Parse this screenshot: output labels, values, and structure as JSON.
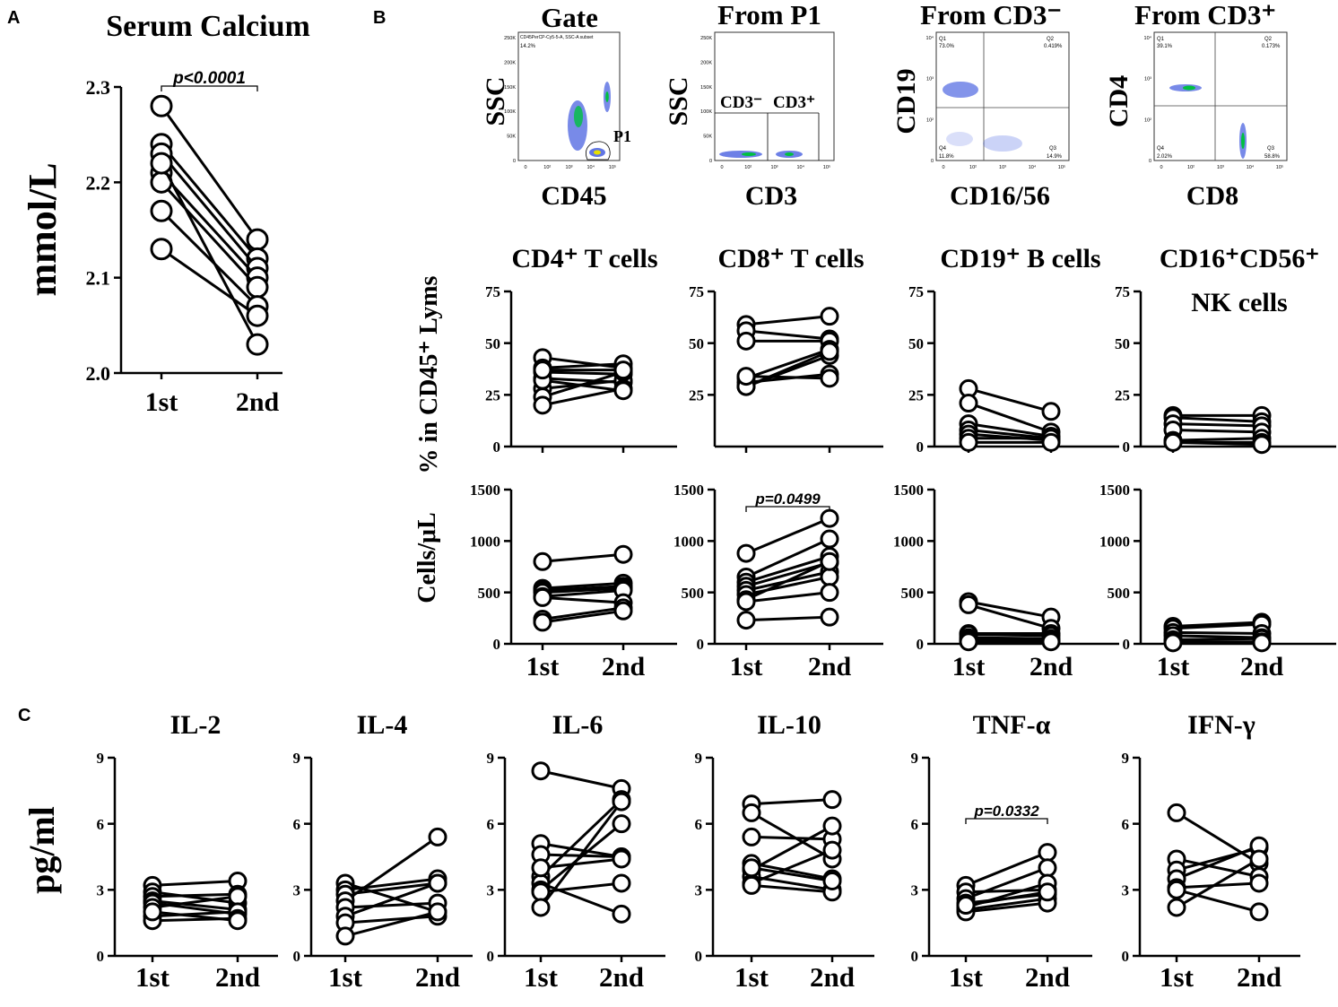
{
  "panels": {
    "A": {
      "letter": "A"
    },
    "B": {
      "letter": "B"
    },
    "C": {
      "letter": "C"
    }
  },
  "flow": {
    "gate": {
      "title": "Gate",
      "ylabel": "SSC",
      "xlabel": "CD45",
      "header": "CD45PerCP-Cy5-5-A, SSC-A subset",
      "pct": "14.2%",
      "gate_label": "P1"
    },
    "p1": {
      "title": "From P1",
      "ylabel": "SSC",
      "xlabel": "CD3",
      "gate_neg": "CD3⁻",
      "gate_pos": "CD3⁺"
    },
    "cd3neg": {
      "title": "From CD3⁻",
      "ylabel": "CD19",
      "xlabel": "CD16/56",
      "q1": "Q1",
      "q1v": "73.0%",
      "q2": "Q2",
      "q2v": "0.419%",
      "q3": "Q3",
      "q3v": "14.9%",
      "q4": "Q4",
      "q4v": "11.8%"
    },
    "cd3pos": {
      "title": "From CD3⁺",
      "ylabel": "CD4",
      "xlabel": "CD8",
      "q1": "Q1",
      "q1v": "39.1%",
      "q2": "Q2",
      "q2v": "0.173%",
      "q3": "Q3",
      "q3v": "58.8%",
      "q4": "Q4",
      "q4v": "2.02%"
    },
    "ssc_ticks": [
      "250K",
      "200K",
      "150K",
      "100K",
      "50K",
      "0"
    ],
    "log_ticks": [
      "10⁴",
      "10³",
      "10²",
      "0"
    ],
    "x_ticks": [
      "0",
      "10²",
      "10³",
      "10⁴",
      "10⁵"
    ]
  },
  "row_labels": {
    "pct": "% in CD45⁺ Lyms",
    "count": "Cells/μL",
    "cytokine": "pg/ml"
  },
  "chart_data": [
    {
      "id": "calcium",
      "type": "line",
      "title": "Serum Calcium",
      "ylabel": "mmol/L",
      "categories": [
        "1st",
        "2nd"
      ],
      "ylim": [
        2.0,
        2.3
      ],
      "yticks": [
        "2.0",
        "2.1",
        "2.2",
        "2.3"
      ],
      "pvalue": "p<0.0001",
      "series": [
        [
          2.28,
          2.14
        ],
        [
          2.24,
          2.12
        ],
        [
          2.23,
          2.11
        ],
        [
          2.21,
          2.1
        ],
        [
          2.2,
          2.09
        ],
        [
          2.17,
          2.07
        ],
        [
          2.13,
          2.06
        ],
        [
          2.22,
          2.03
        ]
      ]
    },
    {
      "id": "cd4pct",
      "type": "line",
      "title": "CD4⁺ T cells",
      "categories": [
        "1st",
        "2nd"
      ],
      "ylim": [
        0,
        75
      ],
      "yticks": [
        "0",
        "25",
        "50",
        "75"
      ],
      "series": [
        [
          43,
          38
        ],
        [
          38,
          40
        ],
        [
          36,
          35
        ],
        [
          33,
          31
        ],
        [
          28,
          32
        ],
        [
          24,
          36
        ],
        [
          20,
          28
        ],
        [
          32,
          27
        ],
        [
          37,
          37
        ]
      ]
    },
    {
      "id": "cd8pct",
      "type": "line",
      "title": "CD8⁺ T cells",
      "categories": [
        "1st",
        "2nd"
      ],
      "ylim": [
        0,
        75
      ],
      "yticks": [
        "25",
        "50",
        "75"
      ],
      "series": [
        [
          59,
          63
        ],
        [
          56,
          52
        ],
        [
          51,
          51
        ],
        [
          33,
          47
        ],
        [
          31,
          35
        ],
        [
          29,
          44
        ],
        [
          29,
          46
        ],
        [
          34,
          33
        ]
      ]
    },
    {
      "id": "cd19pct",
      "type": "line",
      "title": "CD19⁺ B cells",
      "categories": [
        "1st",
        "2nd"
      ],
      "ylim": [
        0,
        75
      ],
      "yticks": [
        "0",
        "25",
        "50",
        "75"
      ],
      "series": [
        [
          28,
          17
        ],
        [
          21,
          7
        ],
        [
          11,
          5
        ],
        [
          8,
          4
        ],
        [
          6,
          3
        ],
        [
          4,
          4
        ],
        [
          2,
          2
        ]
      ]
    },
    {
      "id": "nkpct",
      "type": "line",
      "title": "CD16⁺CD56⁺",
      "subtitle": "NK cells",
      "categories": [
        "1st",
        "2nd"
      ],
      "ylim": [
        0,
        75
      ],
      "yticks": [
        "0",
        "25",
        "50",
        "75"
      ],
      "series": [
        [
          15,
          15
        ],
        [
          14,
          12
        ],
        [
          11,
          10
        ],
        [
          8,
          7
        ],
        [
          3,
          4
        ],
        [
          2,
          2
        ],
        [
          2,
          1
        ]
      ]
    },
    {
      "id": "cd4cnt",
      "type": "line",
      "categories": [
        "1st",
        "2nd"
      ],
      "ylim": [
        0,
        1500
      ],
      "yticks": [
        "0",
        "500",
        "1000",
        "1500"
      ],
      "series": [
        [
          800,
          870
        ],
        [
          540,
          590
        ],
        [
          520,
          560
        ],
        [
          500,
          540
        ],
        [
          460,
          520
        ],
        [
          450,
          400
        ],
        [
          240,
          350
        ],
        [
          210,
          320
        ]
      ]
    },
    {
      "id": "cd8cnt",
      "type": "line",
      "categories": [
        "1st",
        "2nd"
      ],
      "ylim": [
        0,
        1500
      ],
      "yticks": [
        "0",
        "500",
        "1000",
        "1500"
      ],
      "pvalue": "p=0.0499",
      "series": [
        [
          880,
          1220
        ],
        [
          650,
          1020
        ],
        [
          600,
          850
        ],
        [
          560,
          790
        ],
        [
          520,
          700
        ],
        [
          480,
          650
        ],
        [
          430,
          800
        ],
        [
          410,
          500
        ],
        [
          230,
          260
        ]
      ]
    },
    {
      "id": "cd19cnt",
      "type": "line",
      "categories": [
        "1st",
        "2nd"
      ],
      "ylim": [
        0,
        1500
      ],
      "yticks": [
        "0",
        "500",
        "1000",
        "1500"
      ],
      "series": [
        [
          410,
          260
        ],
        [
          380,
          150
        ],
        [
          100,
          100
        ],
        [
          90,
          80
        ],
        [
          60,
          50
        ],
        [
          40,
          30
        ],
        [
          20,
          20
        ]
      ]
    },
    {
      "id": "nkcnt",
      "type": "line",
      "categories": [
        "1st",
        "2nd"
      ],
      "ylim": [
        0,
        1500
      ],
      "yticks": [
        "0",
        "500",
        "1000",
        "1500"
      ],
      "series": [
        [
          170,
          210
        ],
        [
          150,
          190
        ],
        [
          110,
          100
        ],
        [
          80,
          60
        ],
        [
          40,
          50
        ],
        [
          20,
          20
        ],
        [
          10,
          10
        ]
      ]
    },
    {
      "id": "il2",
      "type": "line",
      "title": "IL-2",
      "categories": [
        "1st",
        "2nd"
      ],
      "ylim": [
        0,
        9
      ],
      "yticks": [
        "0",
        "3",
        "6",
        "9"
      ],
      "series": [
        [
          3.2,
          3.4
        ],
        [
          2.9,
          2.4
        ],
        [
          2.7,
          2.8
        ],
        [
          2.5,
          2.1
        ],
        [
          2.4,
          1.9
        ],
        [
          2.2,
          2.7
        ],
        [
          1.8,
          2.0
        ],
        [
          1.6,
          1.7
        ],
        [
          2.0,
          1.6
        ]
      ]
    },
    {
      "id": "il4",
      "type": "line",
      "title": "IL-4",
      "categories": [
        "1st",
        "2nd"
      ],
      "ylim": [
        0,
        9
      ],
      "yticks": [
        "0",
        "3",
        "6",
        "9"
      ],
      "series": [
        [
          3.3,
          2.0
        ],
        [
          3.0,
          3.5
        ],
        [
          2.8,
          3.3
        ],
        [
          2.5,
          5.4
        ],
        [
          2.2,
          2.4
        ],
        [
          1.8,
          3.3
        ],
        [
          1.5,
          1.8
        ],
        [
          0.9,
          2.0
        ]
      ]
    },
    {
      "id": "il6",
      "type": "line",
      "title": "IL-6",
      "categories": [
        "1st",
        "2nd"
      ],
      "ylim": [
        0,
        9
      ],
      "yticks": [
        "0",
        "3",
        "6",
        "9"
      ],
      "series": [
        [
          8.4,
          7.6
        ],
        [
          5.1,
          4.5
        ],
        [
          4.6,
          4.5
        ],
        [
          3.6,
          7.1
        ],
        [
          3.3,
          1.9
        ],
        [
          3.0,
          6.0
        ],
        [
          2.9,
          3.3
        ],
        [
          2.2,
          7.0
        ],
        [
          4.0,
          4.4
        ]
      ]
    },
    {
      "id": "il10",
      "type": "line",
      "title": "IL-10",
      "categories": [
        "1st",
        "2nd"
      ],
      "ylim": [
        0,
        9
      ],
      "yticks": [
        "0",
        "3",
        "6",
        "9"
      ],
      "series": [
        [
          6.9,
          7.1
        ],
        [
          6.5,
          4.4
        ],
        [
          5.4,
          5.3
        ],
        [
          4.2,
          3.5
        ],
        [
          3.9,
          5.9
        ],
        [
          3.6,
          3.0
        ],
        [
          3.3,
          4.8
        ],
        [
          3.2,
          2.9
        ],
        [
          4.0,
          3.4
        ]
      ]
    },
    {
      "id": "tnf",
      "type": "line",
      "title": "TNF-α",
      "categories": [
        "1st",
        "2nd"
      ],
      "ylim": [
        0,
        9
      ],
      "yticks": [
        "0",
        "3",
        "6",
        "9"
      ],
      "pvalue": "p=0.0332",
      "series": [
        [
          3.2,
          4.7
        ],
        [
          2.9,
          3.0
        ],
        [
          2.6,
          4.0
        ],
        [
          2.4,
          2.8
        ],
        [
          2.2,
          3.3
        ],
        [
          2.1,
          2.6
        ],
        [
          2.0,
          2.4
        ],
        [
          2.3,
          2.9
        ]
      ]
    },
    {
      "id": "ifn",
      "type": "line",
      "title": "IFN-γ",
      "categories": [
        "1st",
        "2nd"
      ],
      "ylim": [
        0,
        9
      ],
      "yticks": [
        "0",
        "3",
        "6",
        "9"
      ],
      "series": [
        [
          6.5,
          4.2
        ],
        [
          4.4,
          3.6
        ],
        [
          3.9,
          4.9
        ],
        [
          3.5,
          5.0
        ],
        [
          3.1,
          3.3
        ],
        [
          3.0,
          2.0
        ],
        [
          2.2,
          4.4
        ]
      ]
    }
  ]
}
